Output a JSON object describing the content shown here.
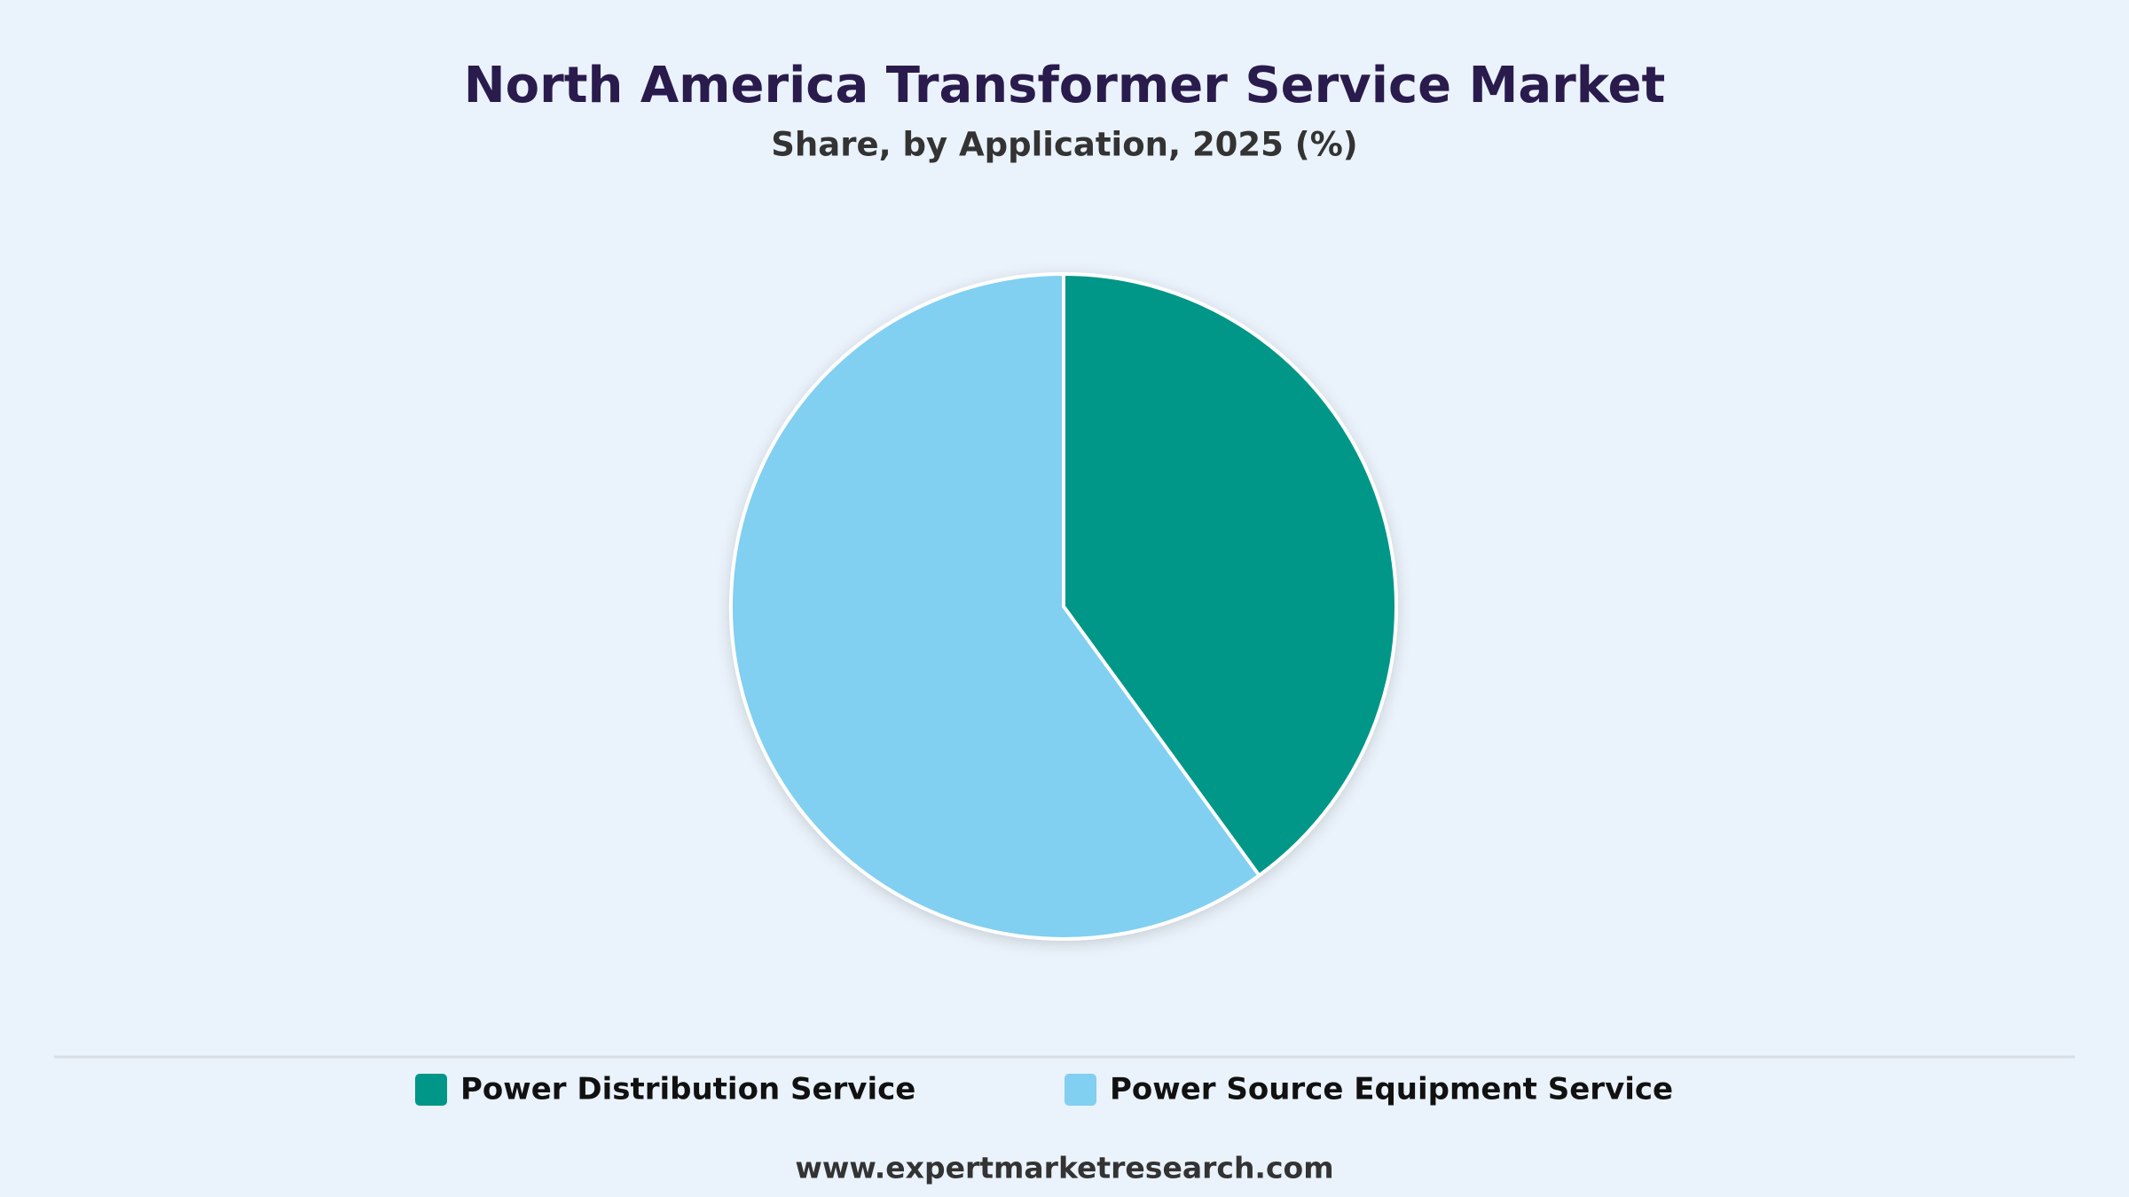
{
  "chart_data": {
    "type": "pie",
    "title": "North America Transformer Service Market",
    "subtitle": "Share, by Application, 2025 (%)",
    "categories": [
      "Power Distribution Service",
      "Power Source Equipment Service"
    ],
    "values": [
      40,
      60
    ],
    "colors": [
      "#009688",
      "#81cff1"
    ],
    "legend": "bottom",
    "source": "www.expertmarketresearch.com"
  }
}
